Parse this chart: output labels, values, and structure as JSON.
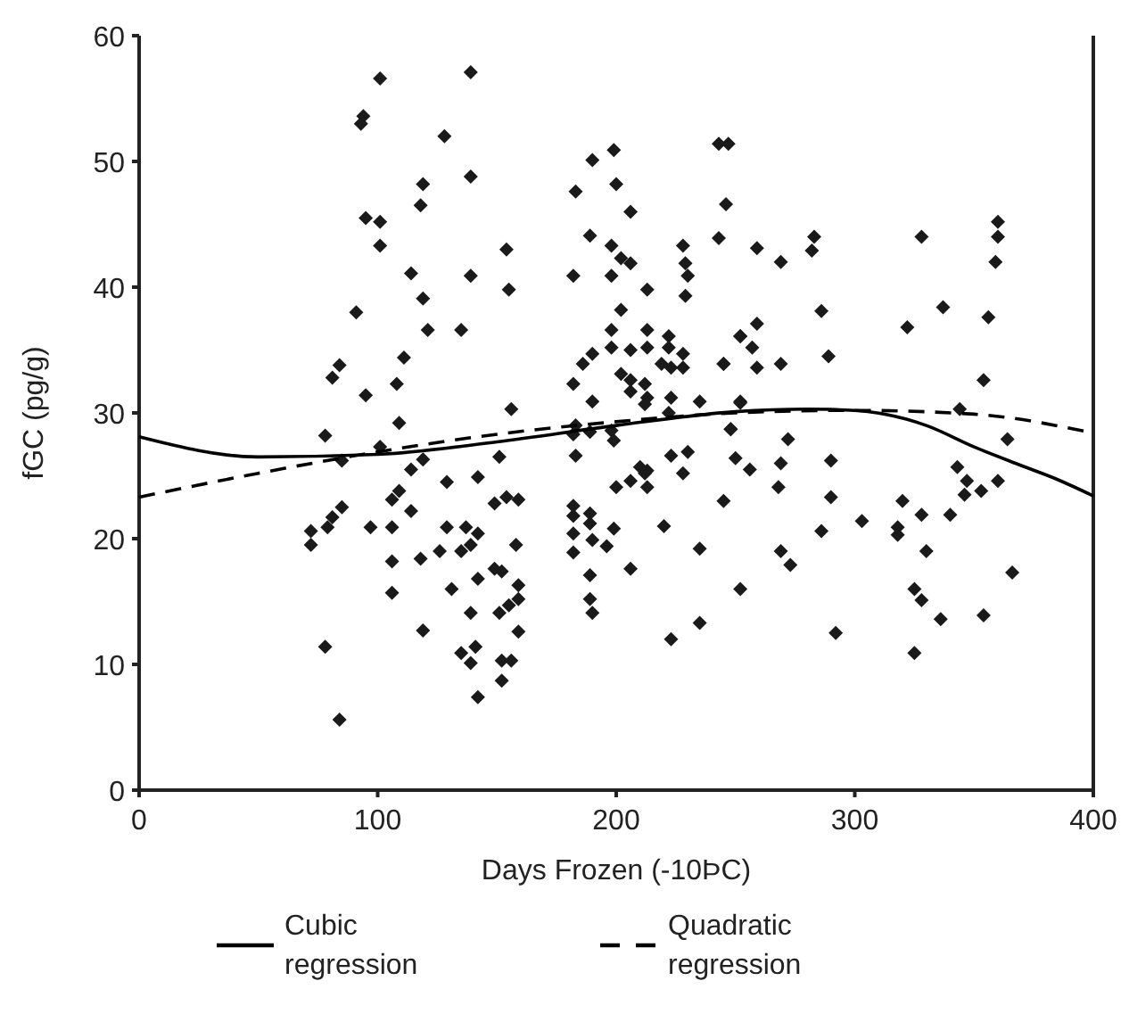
{
  "chart_data": {
    "type": "scatter",
    "xlabel": "Days Frozen (-10ÞC)",
    "ylabel": "fGC (pg/g)",
    "xlim": [
      0,
      400
    ],
    "xticks": [
      0,
      100,
      200,
      300,
      400
    ],
    "ylim": [
      0,
      60
    ],
    "yticks": [
      0,
      10,
      20,
      30,
      40,
      50,
      60
    ],
    "grid": false,
    "legend": "bottom",
    "series": [
      {
        "marker": "diamond",
        "color": "#1a1a1a",
        "x": [
          101,
          139,
          94,
          93,
          128,
          119,
          139,
          118,
          95,
          101,
          101,
          154,
          114,
          139,
          155,
          119,
          91,
          121,
          135,
          111,
          84,
          81,
          108,
          95,
          156,
          109,
          78,
          101,
          85,
          119,
          114,
          151,
          129,
          142,
          159,
          154,
          149,
          109,
          106,
          85,
          81,
          114,
          72,
          79,
          97,
          106,
          129,
          137,
          72,
          142,
          139,
          135,
          126,
          158,
          118,
          106,
          149,
          152,
          142,
          159,
          131,
          106,
          159,
          155,
          151,
          139,
          119,
          159,
          78,
          141,
          135,
          139,
          152,
          156,
          152,
          142,
          84,
          243,
          247,
          199,
          190,
          183,
          200,
          246,
          206,
          189,
          243,
          198,
          228,
          202,
          206,
          229,
          182,
          198,
          230,
          213,
          229,
          202,
          198,
          213,
          222,
          252,
          190,
          186,
          198,
          206,
          213,
          222,
          228,
          219,
          223,
          228,
          245,
          182,
          202,
          206,
          206,
          212,
          190,
          213,
          212,
          223,
          235,
          252,
          222,
          183,
          182,
          189,
          198,
          199,
          248,
          183,
          223,
          230,
          250,
          210,
          213,
          212,
          206,
          228,
          200,
          213,
          245,
          182,
          182,
          189,
          189,
          182,
          190,
          199,
          196,
          182,
          220,
          235,
          206,
          189,
          252,
          189,
          190,
          235,
          223,
          259,
          269,
          283,
          282,
          328,
          360,
          360,
          359,
          286,
          337,
          356,
          322,
          259,
          252,
          257,
          245,
          259,
          269,
          289,
          354,
          252,
          344,
          248,
          272,
          364,
          256,
          269,
          290,
          268,
          343,
          347,
          346,
          353,
          360,
          290,
          320,
          328,
          340,
          303,
          286,
          318,
          318,
          330,
          269,
          273,
          366,
          325,
          328,
          336,
          354,
          292,
          325
        ],
        "values": [
          56.6,
          57.1,
          53.6,
          53.0,
          52.0,
          48.2,
          48.8,
          46.5,
          45.5,
          45.2,
          43.3,
          43.0,
          41.1,
          40.9,
          39.8,
          39.1,
          38.0,
          36.6,
          36.6,
          34.4,
          33.8,
          32.8,
          32.3,
          31.4,
          30.3,
          29.2,
          28.2,
          27.3,
          26.2,
          26.3,
          25.5,
          26.5,
          24.5,
          24.9,
          23.1,
          23.3,
          22.8,
          23.8,
          23.1,
          22.5,
          21.7,
          22.2,
          20.6,
          20.9,
          20.9,
          20.9,
          20.9,
          20.9,
          19.5,
          20.4,
          19.5,
          19.0,
          19.0,
          19.5,
          18.4,
          18.2,
          17.6,
          17.4,
          16.8,
          16.3,
          16.0,
          15.7,
          15.2,
          14.7,
          14.1,
          14.1,
          12.7,
          12.6,
          11.4,
          11.4,
          10.9,
          10.1,
          10.3,
          10.3,
          8.7,
          7.4,
          5.6,
          51.4,
          51.4,
          50.9,
          50.1,
          47.6,
          48.2,
          46.6,
          46.0,
          44.1,
          43.9,
          43.3,
          43.3,
          42.3,
          41.9,
          41.9,
          40.9,
          40.9,
          40.9,
          39.8,
          39.3,
          38.2,
          36.6,
          36.6,
          36.1,
          36.1,
          34.7,
          33.9,
          35.2,
          35.0,
          35.2,
          35.2,
          34.7,
          33.9,
          33.6,
          33.6,
          33.9,
          32.3,
          33.1,
          32.6,
          31.7,
          32.3,
          30.9,
          31.2,
          30.7,
          31.2,
          30.9,
          30.9,
          30.0,
          29.0,
          28.3,
          28.5,
          28.6,
          27.8,
          28.7,
          26.6,
          26.6,
          26.9,
          26.4,
          25.7,
          25.4,
          25.2,
          24.6,
          25.2,
          24.1,
          24.1,
          23.0,
          22.6,
          21.8,
          22.0,
          21.2,
          20.4,
          19.9,
          20.8,
          19.4,
          18.9,
          21.0,
          19.2,
          17.6,
          17.1,
          16.0,
          15.2,
          14.1,
          13.3,
          12.0,
          43.1,
          42.0,
          44.0,
          42.9,
          44.0,
          45.2,
          44.0,
          42.0,
          38.1,
          38.4,
          37.6,
          36.8,
          37.1,
          36.1,
          35.2,
          33.9,
          33.6,
          33.9,
          34.5,
          32.6,
          30.8,
          30.3,
          28.7,
          27.9,
          27.9,
          25.5,
          26.0,
          26.2,
          24.1,
          25.7,
          24.6,
          23.5,
          23.8,
          24.6,
          23.3,
          23.0,
          21.9,
          21.9,
          21.4,
          20.6,
          20.9,
          20.3,
          19.0,
          19.0,
          17.9,
          17.3,
          16.0,
          15.1,
          13.6,
          13.9,
          12.5,
          10.9
        ]
      },
      {
        "type": "line",
        "name": "Cubic regression",
        "color": "#000000",
        "line_style": "solid",
        "marker": "none",
        "x": [
          0,
          50,
          100,
          150,
          200,
          250,
          280,
          300,
          330,
          350,
          370,
          385,
          400
        ],
        "values": [
          28.1,
          26.5,
          26.7,
          27.7,
          29.0,
          30.1,
          30.3,
          30.2,
          29.0,
          27.3,
          25.8,
          24.7,
          23.4
        ]
      },
      {
        "type": "line",
        "name": "Quadratic regression",
        "color": "#000000",
        "line_style": "dashed",
        "marker": "none",
        "x": [
          0,
          50,
          100,
          150,
          200,
          250,
          300,
          350,
          400
        ],
        "values": [
          23.3,
          25.2,
          26.9,
          28.3,
          29.3,
          30.0,
          30.2,
          29.9,
          28.4
        ]
      }
    ]
  }
}
